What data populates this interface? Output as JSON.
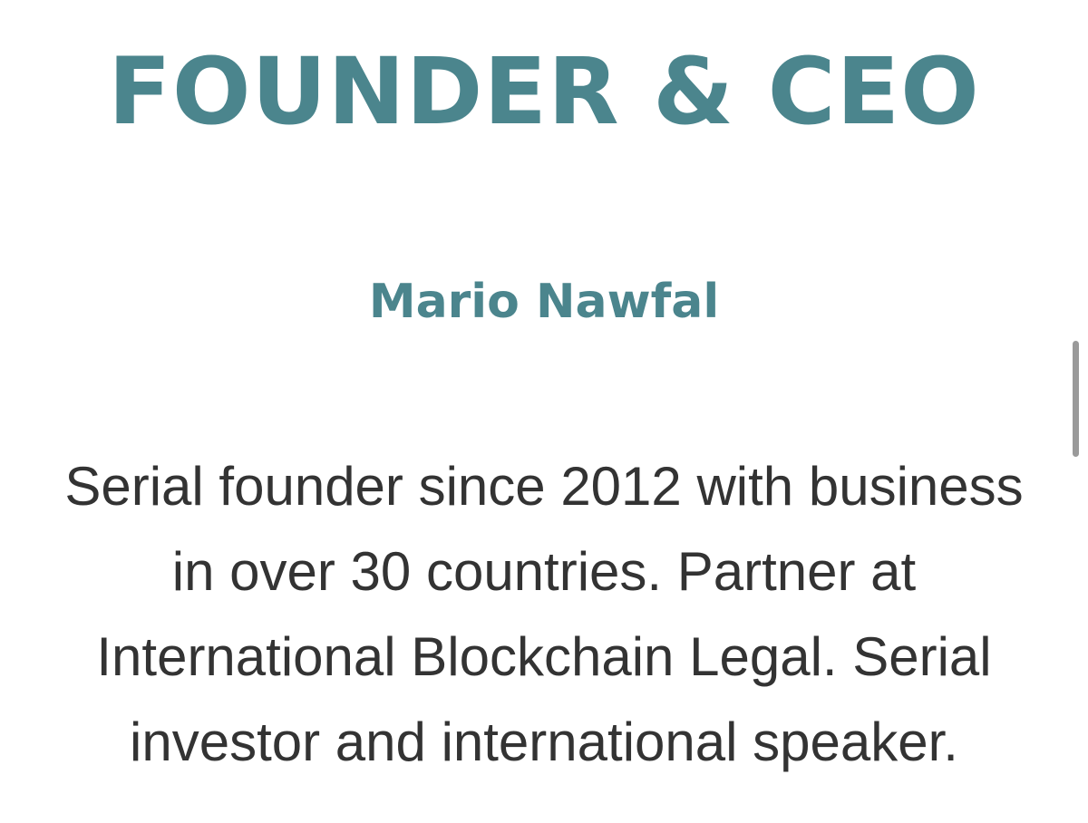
{
  "section": {
    "title": "FOUNDER & CEO",
    "name": "Mario Nawfal",
    "bio_lines": [
      "Serial founder since 2012 with business",
      "in over 30 countries. Partner at",
      "International Blockchain Legal. Serial",
      "investor and international speaker."
    ]
  },
  "colors": {
    "accent": "#4b858d",
    "body_text": "#333333",
    "background": "#ffffff",
    "scrollbar": "#9a9a9a"
  },
  "scroll": {
    "thumb_position_fraction": 0.45
  }
}
